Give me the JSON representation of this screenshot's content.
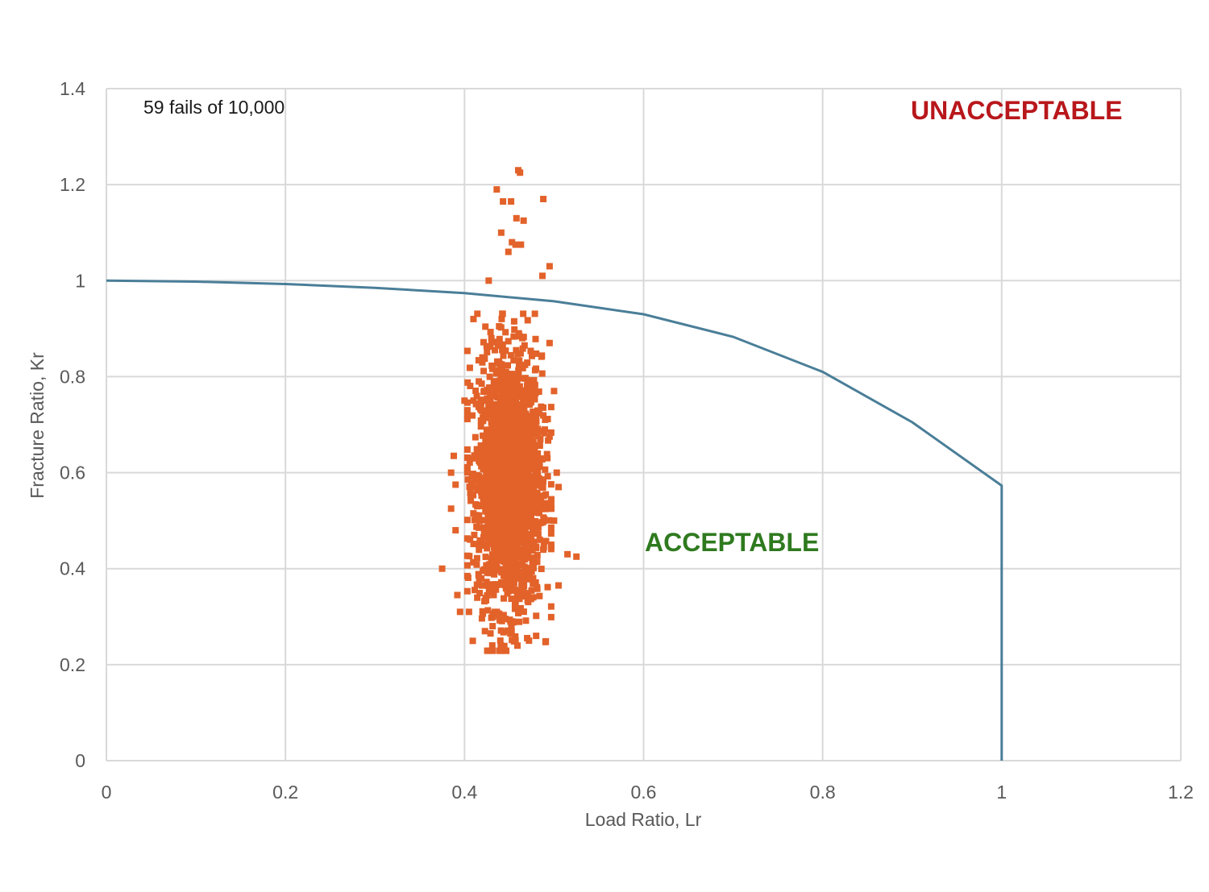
{
  "chart_data": {
    "type": "scatter",
    "xlabel": "Load Ratio, Lr",
    "ylabel": "Fracture Ratio, Kr",
    "xlim": [
      0,
      1.2
    ],
    "ylim": [
      0,
      1.4
    ],
    "x_ticks": [
      "0",
      "0.2",
      "0.4",
      "0.6",
      "0.8",
      "1",
      "1.2"
    ],
    "y_ticks": [
      "0",
      "0.2",
      "0.4",
      "0.6",
      "0.8",
      "1",
      "1.2",
      "1.4"
    ],
    "grid": true,
    "annotations": {
      "fails_text": "59 fails of 10,000",
      "unacceptable": "UNACCEPTABLE",
      "acceptable": "ACCEPTABLE"
    },
    "colors": {
      "points": "#E2622A",
      "curve": "#4A7E98",
      "unacceptable": "#B8171B",
      "acceptable": "#2F7A1F",
      "grid": "#D9D9D9"
    },
    "scatter_summary": {
      "samples": 10000,
      "fails": 59,
      "lr_center": 0.45,
      "lr_spread": 0.018,
      "kr_center": 0.58,
      "kr_spread": 0.13
    },
    "fad_curve": [
      [
        0,
        1.0
      ],
      [
        0.1,
        0.998
      ],
      [
        0.2,
        0.993
      ],
      [
        0.3,
        0.985
      ],
      [
        0.4,
        0.974
      ],
      [
        0.5,
        0.957
      ],
      [
        0.6,
        0.93
      ],
      [
        0.7,
        0.883
      ],
      [
        0.8,
        0.81
      ],
      [
        0.9,
        0.705
      ],
      [
        1.0,
        0.573
      ],
      [
        1.0,
        0
      ]
    ],
    "outlier_points": [
      [
        0.46,
        1.23
      ],
      [
        0.462,
        1.225
      ],
      [
        0.436,
        1.19
      ],
      [
        0.488,
        1.17
      ],
      [
        0.443,
        1.165
      ],
      [
        0.452,
        1.165
      ],
      [
        0.458,
        1.13
      ],
      [
        0.466,
        1.125
      ],
      [
        0.441,
        1.1
      ],
      [
        0.453,
        1.08
      ],
      [
        0.457,
        1.075
      ],
      [
        0.463,
        1.075
      ],
      [
        0.449,
        1.06
      ],
      [
        0.495,
        1.03
      ],
      [
        0.427,
        1.0
      ],
      [
        0.487,
        1.01
      ],
      [
        0.43,
        0.88
      ],
      [
        0.41,
        0.92
      ],
      [
        0.42,
        0.84
      ],
      [
        0.416,
        0.79
      ],
      [
        0.495,
        0.87
      ],
      [
        0.41,
        0.75
      ],
      [
        0.5,
        0.77
      ],
      [
        0.503,
        0.6
      ],
      [
        0.388,
        0.635
      ],
      [
        0.385,
        0.6
      ],
      [
        0.39,
        0.575
      ],
      [
        0.385,
        0.525
      ],
      [
        0.39,
        0.48
      ],
      [
        0.375,
        0.4
      ],
      [
        0.515,
        0.43
      ],
      [
        0.525,
        0.425
      ],
      [
        0.392,
        0.345
      ],
      [
        0.405,
        0.31
      ],
      [
        0.395,
        0.31
      ],
      [
        0.429,
        0.265
      ],
      [
        0.431,
        0.24
      ],
      [
        0.44,
        0.25
      ],
      [
        0.457,
        0.25
      ],
      [
        0.472,
        0.25
      ],
      [
        0.48,
        0.26
      ],
      [
        0.505,
        0.365
      ],
      [
        0.505,
        0.57
      ],
      [
        0.5,
        0.5
      ],
      [
        0.4,
        0.75
      ]
    ]
  }
}
